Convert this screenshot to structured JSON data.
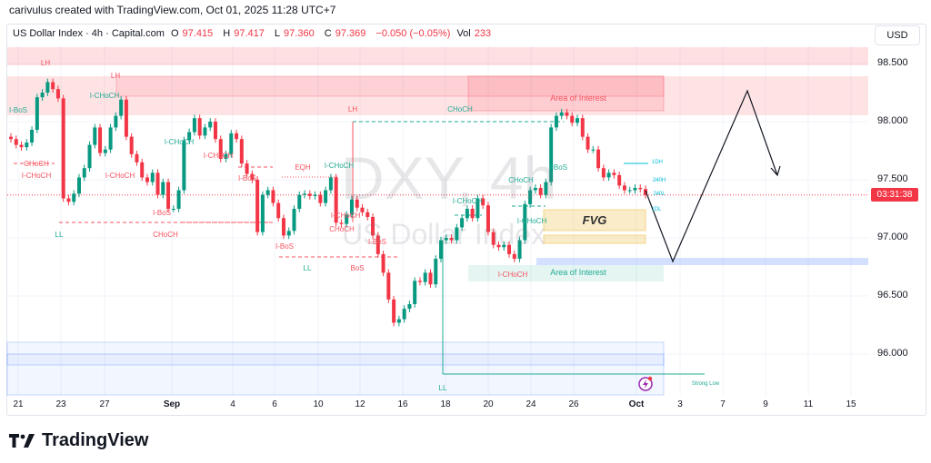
{
  "credit": "carivulus created with TradingView.com, Oct 01, 2025 11:28 UTC+7",
  "legend": {
    "symbol": "US Dollar Index · 4h · Capital.com",
    "o_label": "O",
    "o": "97.415",
    "h_label": "H",
    "h": "97.417",
    "l_label": "L",
    "l": "97.360",
    "c_label": "C",
    "c": "97.369",
    "change": "−0.050 (−0.05%)",
    "vol_label": "Vol",
    "vol": "233"
  },
  "currency": "USD",
  "countdown": "03:31:38",
  "watermark": {
    "line1": "DXY, 4h",
    "line2": "US Dollar Index"
  },
  "logo": "TradingView",
  "colors": {
    "up": "#089981",
    "down": "#f23645",
    "supply_zone": "#f7525f",
    "demand_zone": "#2962ff",
    "fvg": "#f0c14b",
    "structure_bull": "#22ab94",
    "structure_bear": "#f7525f"
  },
  "chart_data": {
    "type": "candlestick",
    "timeframe": "4h",
    "ylim": [
      95.65,
      98.75
    ],
    "y_ticks": [
      "98.500",
      "98.000",
      "97.500",
      "97.000",
      "96.500",
      "96.000"
    ],
    "x_ticks": [
      {
        "label": "21",
        "bold": false
      },
      {
        "label": "23",
        "bold": false
      },
      {
        "label": "27",
        "bold": false
      },
      {
        "label": "Sep",
        "bold": true
      },
      {
        "label": "4",
        "bold": false
      },
      {
        "label": "6",
        "bold": false
      },
      {
        "label": "10",
        "bold": false
      },
      {
        "label": "12",
        "bold": false
      },
      {
        "label": "16",
        "bold": false
      },
      {
        "label": "18",
        "bold": false
      },
      {
        "label": "20",
        "bold": false
      },
      {
        "label": "24",
        "bold": false
      },
      {
        "label": "26",
        "bold": false
      },
      {
        "label": "Oct",
        "bold": true
      },
      {
        "label": "3",
        "bold": false
      },
      {
        "label": "7",
        "bold": false
      },
      {
        "label": "9",
        "bold": false
      },
      {
        "label": "11",
        "bold": false
      },
      {
        "label": "15",
        "bold": false
      }
    ],
    "close": [
      97.85,
      97.8,
      97.78,
      97.82,
      97.93,
      98.21,
      98.25,
      98.34,
      98.28,
      98.2,
      97.34,
      97.31,
      97.38,
      97.52,
      97.6,
      97.8,
      97.95,
      97.73,
      97.76,
      97.95,
      98.05,
      98.19,
      97.87,
      97.72,
      97.65,
      97.52,
      97.48,
      97.56,
      97.37,
      97.48,
      97.25,
      97.25,
      97.41,
      97.84,
      97.91,
      98.03,
      97.88,
      97.95,
      98.0,
      97.85,
      97.68,
      97.72,
      97.9,
      97.85,
      97.64,
      97.55,
      97.5,
      97.05,
      97.37,
      97.41,
      97.3,
      97.17,
      97.02,
      97.06,
      97.25,
      97.37,
      97.38,
      97.36,
      97.37,
      97.3,
      97.41,
      97.52,
      97.13,
      97.12,
      97.2,
      97.33,
      97.26,
      97.22,
      97.18,
      97.02,
      96.86,
      96.7,
      96.47,
      96.27,
      96.3,
      96.39,
      96.43,
      96.63,
      96.62,
      96.7,
      96.6,
      96.82,
      96.98,
      97.0,
      96.98,
      97.09,
      97.17,
      97.25,
      97.17,
      97.34,
      97.28,
      97.05,
      96.94,
      96.92,
      96.94,
      96.86,
      96.82,
      96.98,
      97.29,
      97.41,
      97.43,
      97.37,
      97.48,
      97.95,
      98.05,
      98.08,
      98.05,
      97.99,
      98.03,
      97.87,
      97.76,
      97.76,
      97.6,
      97.52,
      97.56,
      97.54,
      97.45,
      97.41,
      97.41,
      97.43,
      97.42,
      97.369
    ],
    "last_price": 97.369,
    "annotations": [
      "LH",
      "LH",
      "I-BoS",
      "I-CHoCH",
      "CHoCH",
      "I-CHoCH",
      "I-CHoCH",
      "LL",
      "I-CHoCH",
      "I-CHoCH",
      "I-BoS",
      "CHoCH",
      "I-BoS",
      "EQH",
      "I-CHoCH",
      "I-BoS",
      "LL",
      "I-CHoCH",
      "CHoCH",
      "I-BoS",
      "BoS",
      "LH",
      "CHoCH",
      "I-CHoCH",
      "I-CHoCH",
      "I-CHoCH",
      "CHoCH",
      "I-BoS",
      "Area of Interest",
      "Area of Interest",
      "1DH",
      "240H",
      "240L",
      "1DL",
      "LL",
      "Strong Low"
    ],
    "fvg_label": "FVG"
  }
}
